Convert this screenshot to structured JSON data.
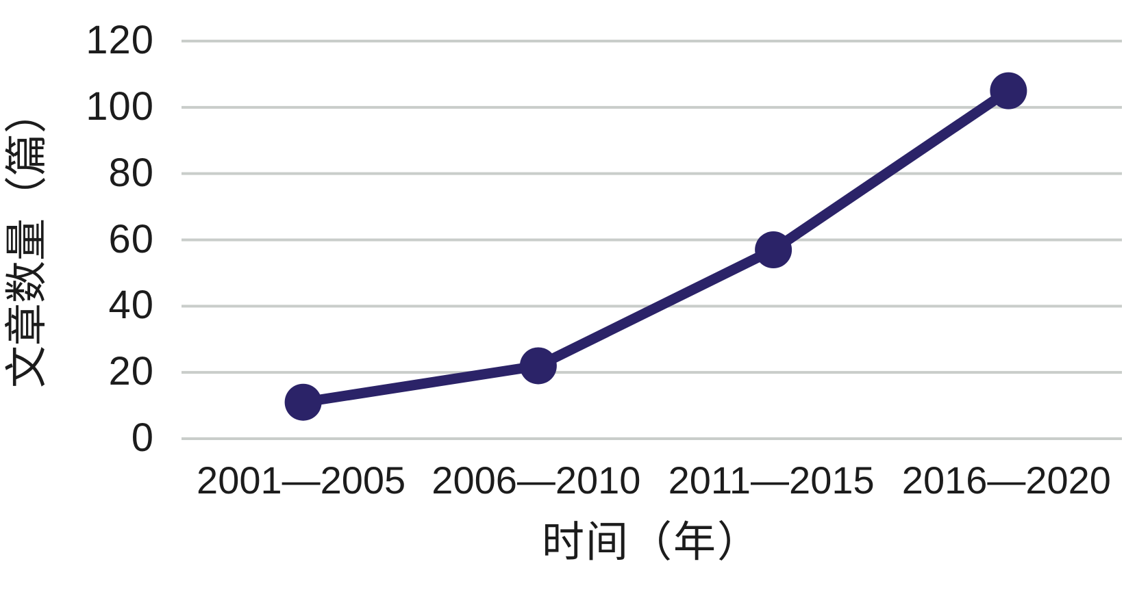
{
  "chart_data": {
    "type": "line",
    "title": "",
    "xlabel": "时间（年）",
    "ylabel": "文章数量（篇）",
    "categories": [
      "2001—2005",
      "2006—2010",
      "2011—2015",
      "2016—2020"
    ],
    "series": [
      {
        "name": "文章数量",
        "values": [
          11,
          22,
          57,
          105
        ]
      }
    ],
    "yticks": [
      0,
      20,
      40,
      60,
      80,
      100,
      120
    ],
    "ylim": [
      0,
      120
    ],
    "grid": true,
    "legend_position": "none",
    "colors": {
      "line": "#2b2368",
      "marker": "#2b2368",
      "gridline": "#c9cdca",
      "text": "#1c1c1c",
      "background": "#ffffff"
    }
  }
}
